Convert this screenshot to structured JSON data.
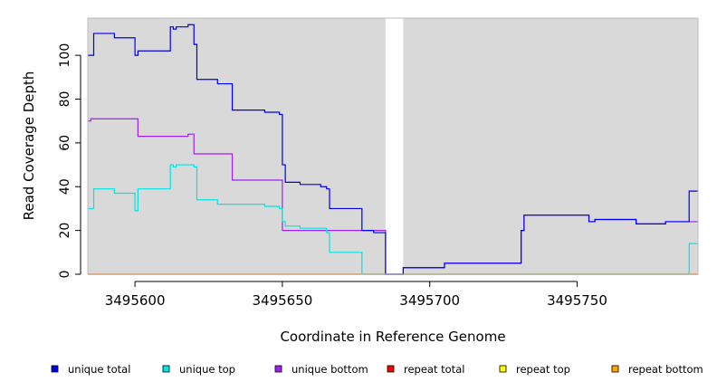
{
  "chart_data": {
    "type": "line",
    "title": "",
    "xlabel": "Coordinate in Reference Genome",
    "ylabel": "Read Coverage Depth",
    "xlim": [
      3495584,
      3495791
    ],
    "ylim": [
      0,
      117
    ],
    "x_ticks": [
      3495600,
      3495650,
      3495700,
      3495750
    ],
    "y_ticks": [
      0,
      20,
      40,
      60,
      80,
      100
    ],
    "background_color": "#d9d9d9",
    "gap_regions": [
      [
        3495685,
        3495691
      ]
    ],
    "legend_position": "bottom",
    "series": [
      {
        "name": "unique total",
        "color": "#0000ee",
        "x": [
          3495584,
          3495586,
          3495586,
          3495593,
          3495593,
          3495600,
          3495600,
          3495601,
          3495601,
          3495612,
          3495612,
          3495613,
          3495613,
          3495614,
          3495614,
          3495618,
          3495618,
          3495620,
          3495620,
          3495621,
          3495621,
          3495628,
          3495628,
          3495633,
          3495633,
          3495644,
          3495644,
          3495649,
          3495649,
          3495650,
          3495650,
          3495651,
          3495651,
          3495656,
          3495656,
          3495663,
          3495663,
          3495665,
          3495665,
          3495666,
          3495666,
          3495677,
          3495677,
          3495681,
          3495681,
          3495685,
          3495685,
          3495691,
          3495691,
          3495705,
          3495705,
          3495731,
          3495731,
          3495732,
          3495732,
          3495754,
          3495754,
          3495756,
          3495756,
          3495770,
          3495770,
          3495780,
          3495780,
          3495788,
          3495788,
          3495791
        ],
        "y": [
          100,
          100,
          110,
          110,
          108,
          108,
          100,
          100,
          102,
          102,
          113,
          113,
          112,
          112,
          113,
          113,
          114,
          114,
          105,
          105,
          89,
          89,
          87,
          87,
          75,
          75,
          74,
          74,
          73,
          73,
          50,
          50,
          42,
          42,
          41,
          41,
          40,
          40,
          39,
          39,
          30,
          30,
          20,
          20,
          19,
          19,
          0,
          0,
          3,
          3,
          5,
          5,
          20,
          20,
          27,
          27,
          24,
          24,
          25,
          25,
          23,
          23,
          24,
          24,
          38,
          38
        ]
      },
      {
        "name": "unique top",
        "color": "#00e5e5",
        "x": [
          3495584,
          3495586,
          3495586,
          3495593,
          3495593,
          3495600,
          3495600,
          3495601,
          3495601,
          3495612,
          3495612,
          3495613,
          3495613,
          3495614,
          3495614,
          3495620,
          3495620,
          3495621,
          3495621,
          3495628,
          3495628,
          3495644,
          3495644,
          3495649,
          3495649,
          3495650,
          3495650,
          3495651,
          3495651,
          3495656,
          3495656,
          3495665,
          3495665,
          3495666,
          3495666,
          3495677,
          3495677,
          3495788,
          3495788,
          3495791
        ],
        "y": [
          30,
          30,
          39,
          39,
          37,
          37,
          29,
          29,
          39,
          39,
          50,
          50,
          49,
          49,
          50,
          50,
          49,
          49,
          34,
          34,
          32,
          32,
          31,
          31,
          30,
          30,
          24,
          24,
          22,
          22,
          21,
          21,
          19,
          19,
          10,
          10,
          0,
          0,
          14,
          14
        ]
      },
      {
        "name": "unique bottom",
        "color": "#a020f0",
        "x": [
          3495584,
          3495585,
          3495585,
          3495601,
          3495601,
          3495602,
          3495602,
          3495618,
          3495618,
          3495620,
          3495620,
          3495633,
          3495633,
          3495650,
          3495650,
          3495685,
          3495685,
          3495691,
          3495691,
          3495705,
          3495705,
          3495731,
          3495731,
          3495732,
          3495732,
          3495754,
          3495754,
          3495756,
          3495756,
          3495770,
          3495770,
          3495780,
          3495780,
          3495791
        ],
        "y": [
          70,
          70,
          71,
          71,
          63,
          63,
          63,
          63,
          64,
          64,
          55,
          55,
          43,
          43,
          20,
          20,
          0,
          0,
          3,
          3,
          5,
          5,
          20,
          20,
          27,
          27,
          24,
          24,
          25,
          25,
          23,
          23,
          24,
          24
        ]
      },
      {
        "name": "repeat total",
        "color": "#ff0000",
        "x": [
          3495584,
          3495791
        ],
        "y": [
          0,
          0
        ]
      },
      {
        "name": "repeat top",
        "color": "#ffff00",
        "x": [
          3495584,
          3495791
        ],
        "y": [
          0,
          0
        ]
      },
      {
        "name": "repeat bottom",
        "color": "#ffa500",
        "x": [
          3495584,
          3495791
        ],
        "y": [
          0,
          0
        ]
      }
    ]
  }
}
